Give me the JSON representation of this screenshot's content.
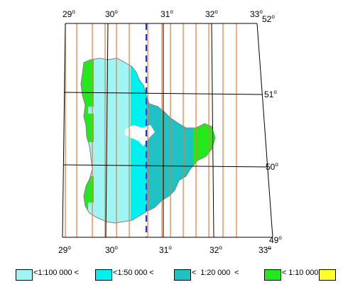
{
  "map": {
    "top_labels": [
      "29",
      "30",
      "31",
      "32",
      "33"
    ],
    "right_labels": [
      "52",
      "51",
      "50",
      "49"
    ],
    "bottom_labels": [
      "29",
      "30",
      "31",
      "32",
      "33"
    ],
    "degree_symbol": "o",
    "colors": {
      "frame": "#000000",
      "grid": "#000000",
      "strip_lines": "#e87a3c",
      "dashed_meridian": "#1f2fd6",
      "region_edge": "#808080"
    }
  },
  "legend": {
    "items": [
      {
        "label": "<1:100 000 <",
        "color": "#9ff5f3"
      },
      {
        "label": "<1:50 000 <",
        "color": "#00f0f0"
      },
      {
        "label": "<  1:20 000  <",
        "color": "#1ec2c4"
      },
      {
        "label": "< 1:10 000 <",
        "color": "#22e81c"
      },
      {
        "label": "",
        "color": "#ffff2a"
      }
    ]
  }
}
